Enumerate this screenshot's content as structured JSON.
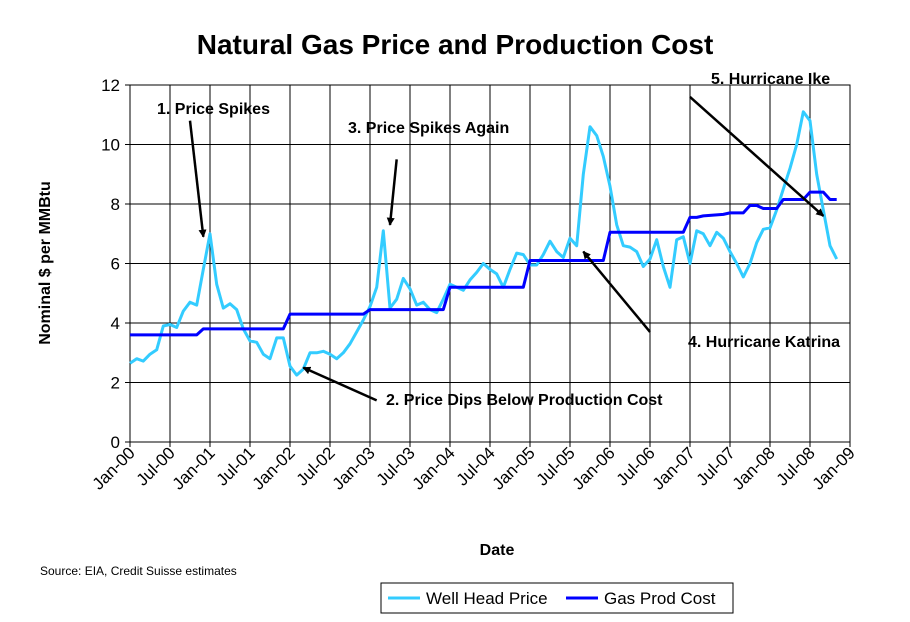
{
  "chart_data": {
    "type": "line",
    "title": "Natural Gas Price and Production Cost",
    "xlabel": "Date",
    "ylabel": "Nominal $ per MMBtu",
    "ylim": [
      0,
      12
    ],
    "yticks": [
      "0",
      "2",
      "4",
      "6",
      "8",
      "10",
      "12"
    ],
    "xticks": [
      "Jan-00",
      "Jul-00",
      "Jan-01",
      "Jul-01",
      "Jan-02",
      "Jul-02",
      "Jan-03",
      "Jul-03",
      "Jan-04",
      "Jul-04",
      "Jan-05",
      "Jul-05",
      "Jan-06",
      "Jul-06",
      "Jan-07",
      "Jul-07",
      "Jan-08",
      "Jul-08",
      "Jan-09"
    ],
    "grid": true,
    "legend_position": "bottom-right",
    "source": "Source: EIA, Credit Suisse estimates",
    "series": [
      {
        "name": "Well Head Price",
        "color": "#33CCFF",
        "points": [
          [
            "2000-01",
            2.65
          ],
          [
            "2000-02",
            2.8
          ],
          [
            "2000-03",
            2.72
          ],
          [
            "2000-04",
            2.95
          ],
          [
            "2000-05",
            3.1
          ],
          [
            "2000-06",
            3.9
          ],
          [
            "2000-07",
            3.95
          ],
          [
            "2000-08",
            3.85
          ],
          [
            "2000-09",
            4.4
          ],
          [
            "2000-10",
            4.7
          ],
          [
            "2000-11",
            4.6
          ],
          [
            "2000-12",
            5.8
          ],
          [
            "2001-01",
            7.0
          ],
          [
            "2001-02",
            5.3
          ],
          [
            "2001-03",
            4.5
          ],
          [
            "2001-04",
            4.65
          ],
          [
            "2001-05",
            4.45
          ],
          [
            "2001-06",
            3.8
          ],
          [
            "2001-07",
            3.4
          ],
          [
            "2001-08",
            3.35
          ],
          [
            "2001-09",
            2.95
          ],
          [
            "2001-10",
            2.8
          ],
          [
            "2001-11",
            3.5
          ],
          [
            "2001-12",
            3.5
          ],
          [
            "2002-01",
            2.55
          ],
          [
            "2002-02",
            2.25
          ],
          [
            "2002-03",
            2.45
          ],
          [
            "2002-04",
            3.0
          ],
          [
            "2002-05",
            3.0
          ],
          [
            "2002-06",
            3.05
          ],
          [
            "2002-07",
            2.95
          ],
          [
            "2002-08",
            2.8
          ],
          [
            "2002-09",
            3.0
          ],
          [
            "2002-10",
            3.3
          ],
          [
            "2002-11",
            3.7
          ],
          [
            "2002-12",
            4.1
          ],
          [
            "2003-01",
            4.55
          ],
          [
            "2003-02",
            5.2
          ],
          [
            "2003-03",
            7.1
          ],
          [
            "2003-04",
            4.5
          ],
          [
            "2003-05",
            4.8
          ],
          [
            "2003-06",
            5.5
          ],
          [
            "2003-07",
            5.15
          ],
          [
            "2003-08",
            4.6
          ],
          [
            "2003-09",
            4.7
          ],
          [
            "2003-10",
            4.45
          ],
          [
            "2003-11",
            4.35
          ],
          [
            "2003-12",
            4.8
          ],
          [
            "2004-01",
            5.3
          ],
          [
            "2004-02",
            5.2
          ],
          [
            "2004-03",
            5.1
          ],
          [
            "2004-04",
            5.45
          ],
          [
            "2004-05",
            5.7
          ],
          [
            "2004-06",
            6.0
          ],
          [
            "2004-07",
            5.8
          ],
          [
            "2004-08",
            5.65
          ],
          [
            "2004-09",
            5.2
          ],
          [
            "2004-10",
            5.8
          ],
          [
            "2004-11",
            6.35
          ],
          [
            "2004-12",
            6.3
          ],
          [
            "2005-01",
            5.95
          ],
          [
            "2005-02",
            5.95
          ],
          [
            "2005-03",
            6.3
          ],
          [
            "2005-04",
            6.75
          ],
          [
            "2005-05",
            6.4
          ],
          [
            "2005-06",
            6.2
          ],
          [
            "2005-07",
            6.85
          ],
          [
            "2005-08",
            6.6
          ],
          [
            "2005-09",
            9.0
          ],
          [
            "2005-10",
            10.6
          ],
          [
            "2005-11",
            10.3
          ],
          [
            "2005-12",
            9.6
          ],
          [
            "2006-01",
            8.6
          ],
          [
            "2006-02",
            7.3
          ],
          [
            "2006-03",
            6.6
          ],
          [
            "2006-04",
            6.55
          ],
          [
            "2006-05",
            6.4
          ],
          [
            "2006-06",
            5.9
          ],
          [
            "2006-07",
            6.15
          ],
          [
            "2006-08",
            6.8
          ],
          [
            "2006-09",
            5.9
          ],
          [
            "2006-10",
            5.2
          ],
          [
            "2006-11",
            6.8
          ],
          [
            "2006-12",
            6.9
          ],
          [
            "2007-01",
            6.0
          ],
          [
            "2007-02",
            7.1
          ],
          [
            "2007-03",
            7.0
          ],
          [
            "2007-04",
            6.6
          ],
          [
            "2007-05",
            7.05
          ],
          [
            "2007-06",
            6.85
          ],
          [
            "2007-07",
            6.4
          ],
          [
            "2007-08",
            6.0
          ],
          [
            "2007-09",
            5.55
          ],
          [
            "2007-10",
            6.0
          ],
          [
            "2007-11",
            6.7
          ],
          [
            "2007-12",
            7.15
          ],
          [
            "2008-01",
            7.2
          ],
          [
            "2008-02",
            7.8
          ],
          [
            "2008-03",
            8.5
          ],
          [
            "2008-04",
            9.2
          ],
          [
            "2008-05",
            10.0
          ],
          [
            "2008-06",
            11.1
          ],
          [
            "2008-07",
            10.8
          ],
          [
            "2008-08",
            9.0
          ],
          [
            "2008-09",
            7.8
          ],
          [
            "2008-10",
            6.6
          ],
          [
            "2008-11",
            6.15
          ]
        ]
      },
      {
        "name": "Gas Prod Cost",
        "color": "#0000FF",
        "points": [
          [
            "2000-01",
            3.6
          ],
          [
            "2000-11",
            3.6
          ],
          [
            "2000-12",
            3.8
          ],
          [
            "2001-12",
            3.8
          ],
          [
            "2002-01",
            4.3
          ],
          [
            "2002-12",
            4.3
          ],
          [
            "2003-01",
            4.45
          ],
          [
            "2003-12",
            4.45
          ],
          [
            "2004-01",
            5.2
          ],
          [
            "2004-12",
            5.2
          ],
          [
            "2005-01",
            6.1
          ],
          [
            "2005-12",
            6.1
          ],
          [
            "2006-01",
            7.05
          ],
          [
            "2006-12",
            7.05
          ],
          [
            "2007-01",
            7.55
          ],
          [
            "2007-02",
            7.55
          ],
          [
            "2007-03",
            7.6
          ],
          [
            "2007-06",
            7.65
          ],
          [
            "2007-07",
            7.7
          ],
          [
            "2007-09",
            7.7
          ],
          [
            "2007-10",
            7.95
          ],
          [
            "2007-11",
            7.95
          ],
          [
            "2007-12",
            7.85
          ],
          [
            "2008-02",
            7.85
          ],
          [
            "2008-03",
            8.15
          ],
          [
            "2008-06",
            8.15
          ],
          [
            "2008-07",
            8.4
          ],
          [
            "2008-09",
            8.4
          ],
          [
            "2008-10",
            8.15
          ],
          [
            "2008-11",
            8.15
          ]
        ]
      }
    ],
    "annotations": [
      {
        "id": "a1",
        "text": "1. Price Spikes",
        "from": [
          "2000-10",
          10.8
        ],
        "to": [
          "2000-12",
          6.9
        ]
      },
      {
        "id": "a2",
        "text": "2. Price Dips Below Production Cost",
        "from": [
          "2003-02",
          1.4
        ],
        "to": [
          "2002-03",
          2.5
        ]
      },
      {
        "id": "a3",
        "text": "3. Price Spikes Again",
        "from": [
          "2003-05",
          9.5
        ],
        "to": [
          "2003-04",
          7.3
        ]
      },
      {
        "id": "a4",
        "text": "4. Hurricane Katrina",
        "from": [
          "2006-07",
          3.7
        ],
        "to": [
          "2005-09",
          6.4
        ]
      },
      {
        "id": "a5",
        "text": "5. Hurricane Ike",
        "from": [
          "2007-01",
          11.6
        ],
        "to": [
          "2008-09",
          7.6
        ]
      }
    ]
  }
}
